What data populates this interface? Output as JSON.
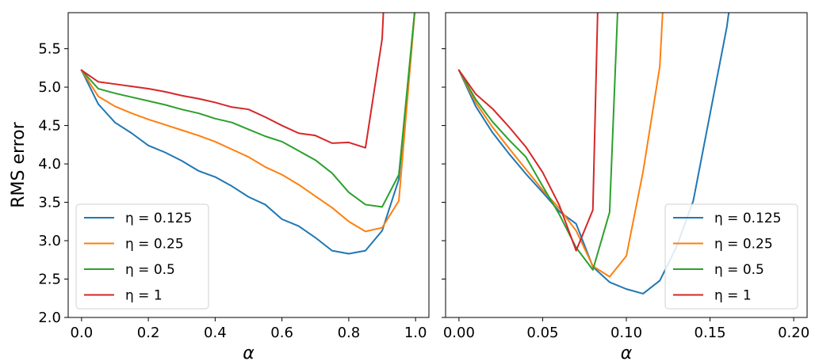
{
  "chart_data": [
    {
      "type": "line",
      "xlabel": "α",
      "ylabel": "RMS error",
      "xlim": [
        -0.04,
        1.04
      ],
      "ylim": [
        2.0,
        5.97
      ],
      "xticks": [
        0.0,
        0.2,
        0.4,
        0.6,
        0.8,
        1.0
      ],
      "xtick_labels": [
        "0.0",
        "0.2",
        "0.4",
        "0.6",
        "0.8",
        "1.0"
      ],
      "yticks": [
        2.0,
        2.5,
        3.0,
        3.5,
        4.0,
        4.5,
        5.0,
        5.5
      ],
      "ytick_labels": [
        "2.0",
        "2.5",
        "3.0",
        "3.5",
        "4.0",
        "4.5",
        "5.0",
        "5.5"
      ],
      "legend_position": "lower-left",
      "series": [
        {
          "name": "η = 0.125",
          "color": "#1f77b4",
          "x": [
            0,
            0.05,
            0.1,
            0.15,
            0.2,
            0.25,
            0.3,
            0.35,
            0.4,
            0.45,
            0.5,
            0.55,
            0.6,
            0.65,
            0.7,
            0.75,
            0.8,
            0.85,
            0.9,
            0.95,
            1.0
          ],
          "y": [
            5.22,
            4.78,
            4.54,
            4.4,
            4.24,
            4.15,
            4.04,
            3.91,
            3.83,
            3.71,
            3.57,
            3.47,
            3.28,
            3.19,
            3.04,
            2.87,
            2.83,
            2.87,
            3.13,
            3.8,
            6.1
          ]
        },
        {
          "name": "η = 0.25",
          "color": "#ff7f0e",
          "x": [
            0,
            0.05,
            0.1,
            0.15,
            0.2,
            0.25,
            0.3,
            0.35,
            0.4,
            0.45,
            0.5,
            0.55,
            0.6,
            0.65,
            0.7,
            0.75,
            0.8,
            0.85,
            0.9,
            0.95,
            1.0
          ],
          "y": [
            5.22,
            4.88,
            4.75,
            4.66,
            4.58,
            4.51,
            4.44,
            4.37,
            4.29,
            4.19,
            4.09,
            3.96,
            3.86,
            3.73,
            3.58,
            3.43,
            3.25,
            3.12,
            3.17,
            3.52,
            6.1
          ]
        },
        {
          "name": "η = 0.5",
          "color": "#2ca02c",
          "x": [
            0,
            0.05,
            0.1,
            0.15,
            0.2,
            0.25,
            0.3,
            0.35,
            0.4,
            0.45,
            0.5,
            0.55,
            0.6,
            0.65,
            0.7,
            0.75,
            0.8,
            0.85,
            0.9,
            0.95,
            1.0
          ],
          "y": [
            5.22,
            4.98,
            4.92,
            4.87,
            4.82,
            4.77,
            4.71,
            4.66,
            4.59,
            4.54,
            4.45,
            4.36,
            4.29,
            4.17,
            4.05,
            3.88,
            3.63,
            3.47,
            3.44,
            3.86,
            6.1
          ]
        },
        {
          "name": "η = 1",
          "color": "#d62728",
          "x": [
            0,
            0.05,
            0.1,
            0.15,
            0.2,
            0.25,
            0.3,
            0.35,
            0.4,
            0.45,
            0.5,
            0.55,
            0.6,
            0.65,
            0.7,
            0.75,
            0.8,
            0.85,
            0.9,
            0.905
          ],
          "y": [
            5.22,
            5.07,
            5.04,
            5.01,
            4.98,
            4.94,
            4.89,
            4.85,
            4.8,
            4.74,
            4.71,
            4.61,
            4.5,
            4.4,
            4.37,
            4.27,
            4.28,
            4.21,
            5.63,
            6.1
          ]
        }
      ]
    },
    {
      "type": "line",
      "xlabel": "α",
      "ylabel": "",
      "xlim": [
        -0.008,
        0.208
      ],
      "ylim": [
        2.0,
        5.97
      ],
      "xticks": [
        0.0,
        0.05,
        0.1,
        0.15,
        0.2
      ],
      "xtick_labels": [
        "0.00",
        "0.05",
        "0.10",
        "0.15",
        "0.20"
      ],
      "yticks": [
        2.0,
        2.5,
        3.0,
        3.5,
        4.0,
        4.5,
        5.0,
        5.5
      ],
      "ytick_labels": [],
      "legend_position": "lower-right",
      "series": [
        {
          "name": "η = 0.125",
          "color": "#1f77b4",
          "x": [
            0,
            0.01,
            0.02,
            0.03,
            0.04,
            0.05,
            0.06,
            0.07,
            0.08,
            0.09,
            0.1,
            0.11,
            0.12,
            0.13,
            0.14,
            0.15,
            0.16,
            0.162
          ],
          "y": [
            5.22,
            4.75,
            4.41,
            4.13,
            3.87,
            3.63,
            3.38,
            3.22,
            2.66,
            2.46,
            2.37,
            2.31,
            2.48,
            2.92,
            3.52,
            4.65,
            5.78,
            6.1
          ]
        },
        {
          "name": "η = 0.25",
          "color": "#ff7f0e",
          "x": [
            0,
            0.01,
            0.02,
            0.03,
            0.04,
            0.05,
            0.06,
            0.07,
            0.08,
            0.09,
            0.1,
            0.11,
            0.12,
            0.122
          ],
          "y": [
            5.22,
            4.8,
            4.48,
            4.2,
            3.93,
            3.66,
            3.42,
            3.13,
            2.67,
            2.53,
            2.8,
            3.9,
            5.27,
            6.1
          ]
        },
        {
          "name": "η = 0.5",
          "color": "#2ca02c",
          "x": [
            0,
            0.01,
            0.02,
            0.03,
            0.04,
            0.05,
            0.06,
            0.07,
            0.08,
            0.09,
            0.095
          ],
          "y": [
            5.22,
            4.84,
            4.55,
            4.31,
            4.09,
            3.71,
            3.34,
            2.91,
            2.62,
            3.37,
            6.1
          ]
        },
        {
          "name": "η = 1",
          "color": "#d62728",
          "x": [
            0,
            0.01,
            0.02,
            0.03,
            0.04,
            0.05,
            0.06,
            0.07,
            0.08,
            0.083
          ],
          "y": [
            5.22,
            4.91,
            4.72,
            4.48,
            4.22,
            3.89,
            3.46,
            2.87,
            3.4,
            6.1
          ]
        }
      ]
    }
  ]
}
